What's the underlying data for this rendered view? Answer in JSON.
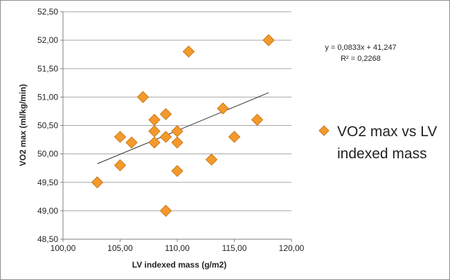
{
  "chart_data": {
    "type": "scatter",
    "title": "",
    "xlabel": "LV indexed mass (g/m2)",
    "ylabel": "VO2 max (ml/kg/min)",
    "xlim": [
      100,
      120
    ],
    "ylim": [
      48.5,
      52.5
    ],
    "x_ticks": [
      "100,00",
      "105,00",
      "110,00",
      "115,00",
      "120,00"
    ],
    "y_ticks": [
      "48,50",
      "49,00",
      "49,50",
      "50,00",
      "50,50",
      "51,00",
      "51,50",
      "52,00",
      "52,50"
    ],
    "grid": "horizontal",
    "legend": {
      "position": "right",
      "entries": [
        "VO2 max vs LV indexed mass"
      ]
    },
    "series": [
      {
        "name": "VO2 max vs LV indexed mass",
        "color": "#f39a2b",
        "marker": "diamond",
        "points": [
          {
            "x": 103,
            "y": 49.5
          },
          {
            "x": 105,
            "y": 49.8
          },
          {
            "x": 105,
            "y": 50.3
          },
          {
            "x": 106,
            "y": 50.2
          },
          {
            "x": 107,
            "y": 51.0
          },
          {
            "x": 108,
            "y": 50.6
          },
          {
            "x": 108,
            "y": 50.4
          },
          {
            "x": 108,
            "y": 50.2
          },
          {
            "x": 109,
            "y": 50.7
          },
          {
            "x": 109,
            "y": 50.3
          },
          {
            "x": 109,
            "y": 49.0
          },
          {
            "x": 110,
            "y": 50.4
          },
          {
            "x": 110,
            "y": 50.2
          },
          {
            "x": 110,
            "y": 49.7
          },
          {
            "x": 111,
            "y": 51.8
          },
          {
            "x": 113,
            "y": 49.9
          },
          {
            "x": 114,
            "y": 50.8
          },
          {
            "x": 115,
            "y": 50.3
          },
          {
            "x": 117,
            "y": 50.6
          },
          {
            "x": 118,
            "y": 52.0
          }
        ]
      }
    ],
    "trendline": {
      "type": "linear",
      "slope": 0.0833,
      "intercept": 41.247,
      "x_range": [
        103,
        118
      ],
      "color": "#333333",
      "equation_label": "y = 0,0833x + 41,247",
      "r2_label": "R² = 0,2268"
    }
  }
}
